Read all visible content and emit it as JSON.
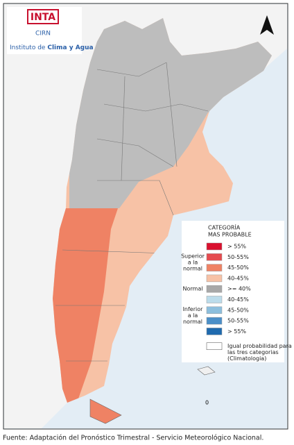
{
  "logo": {
    "name": "INTA",
    "sub": "CIRN",
    "institute_prefix": "Instituto de",
    "institute_name": "Clima y Agua"
  },
  "legend": {
    "title": [
      "CATEGORÍA",
      "MAS PROBABLE"
    ],
    "groups": [
      {
        "label": [
          "Superior",
          "a la",
          "normal"
        ],
        "items": [
          {
            "label": "> 55%",
            "color": "#d9102e"
          },
          {
            "label": "50-55%",
            "color": "#e54b4f"
          },
          {
            "label": "45-50%",
            "color": "#ef8264"
          },
          {
            "label": "40-45%",
            "color": "#f7c2a6"
          }
        ]
      },
      {
        "label": [
          "Normal"
        ],
        "items": [
          {
            "label": ">= 40%",
            "color": "#a8a8a8"
          }
        ]
      },
      {
        "label": [
          "Inferior",
          "a la",
          "normal"
        ],
        "items": [
          {
            "label": "40-45%",
            "color": "#bcdceb"
          },
          {
            "label": "45-50%",
            "color": "#8dbfdd"
          },
          {
            "label": "50-55%",
            "color": "#4b8fc8"
          },
          {
            "label": "> 55%",
            "color": "#1f6aae"
          }
        ]
      }
    ],
    "equal": {
      "label": [
        "Igual probabilidad para",
        "las tres categorias",
        "(Climatologia)"
      ],
      "color": "#ffffff"
    }
  },
  "map_mark": "0",
  "footer": "Fuente: Adaptación del Pronóstico Trimestral - Servicio Meteorológico Nacional."
}
